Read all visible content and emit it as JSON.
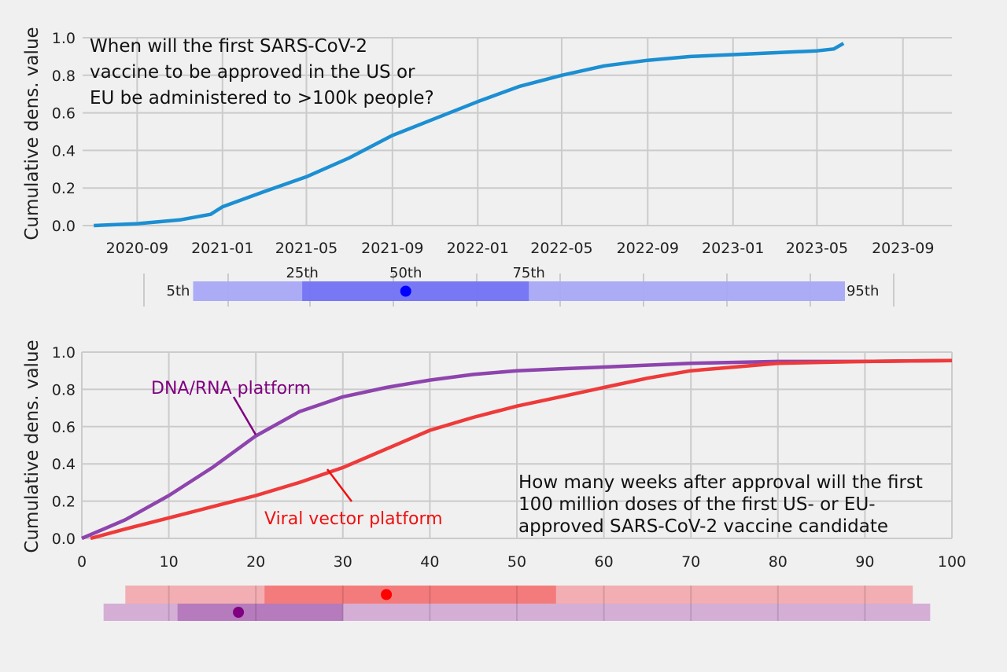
{
  "colors": {
    "background": "#f0f0f0",
    "grid": "#cbcbcb",
    "top_series": "#1c8fd2",
    "dna_rna": "#8e44ad",
    "viral_vector": "#ee3a3a",
    "top_band_light": "#a8a8f5",
    "top_band_dark": "#6e6ef5",
    "top_dot": "#0000ff",
    "red_band_light": "#f2aeb2",
    "red_band_dark": "#f47b7b",
    "red_dot": "#ff0000",
    "purple_band_light": "#d5aed5",
    "purple_band_dark": "#b57bbd",
    "purple_dot": "#800080",
    "dna_label_color": "#800080",
    "viral_label_color": "#ee1111"
  },
  "chart_data": [
    {
      "type": "line",
      "title": "When will the first SARS-CoV-2\nvaccine to be approved in the US or\nEU be administered to >100k people?",
      "ylabel": "Cumulative dens. value",
      "xlabel": "",
      "x_is_date": true,
      "xlim": [
        "2020-06-15",
        "2023-11-10"
      ],
      "ylim": [
        0,
        1.0
      ],
      "x_ticks": [
        "2020-09-01",
        "2021-01-01",
        "2021-05-01",
        "2021-09-01",
        "2022-01-01",
        "2022-05-01",
        "2022-09-01",
        "2023-01-01",
        "2023-05-01",
        "2023-09-01"
      ],
      "x_tick_labels": [
        "2020-09",
        "2021-01",
        "2021-05",
        "2021-09",
        "2022-01",
        "2022-05",
        "2022-09",
        "2023-01",
        "2023-05",
        "2023-09"
      ],
      "y_ticks": [
        0.0,
        0.2,
        0.4,
        0.6,
        0.8,
        1.0
      ],
      "y_tick_labels": [
        "0.0",
        "0.2",
        "0.4",
        "0.6",
        "0.8",
        "1.0"
      ],
      "grid": true,
      "series": [
        {
          "x": [
            "2020-07-01",
            "2020-09-01",
            "2020-11-01",
            "2020-12-15",
            "2021-01-01",
            "2021-03-01",
            "2021-05-01",
            "2021-07-01",
            "2021-09-01",
            "2021-11-01",
            "2022-01-01",
            "2022-03-01",
            "2022-05-01",
            "2022-07-01",
            "2022-09-01",
            "2022-11-01",
            "2023-01-01",
            "2023-03-01",
            "2023-05-01",
            "2023-05-25",
            "2023-06-08"
          ],
          "values": [
            0.0,
            0.01,
            0.03,
            0.06,
            0.1,
            0.18,
            0.26,
            0.36,
            0.48,
            0.57,
            0.66,
            0.74,
            0.8,
            0.85,
            0.88,
            0.9,
            0.91,
            0.92,
            0.93,
            0.94,
            0.97
          ]
        }
      ],
      "percentile_band": {
        "labels": [
          "5th",
          "25th",
          "50th",
          "75th",
          "95th"
        ],
        "dates": [
          "2020-11-20",
          "2021-04-25",
          "2021-09-20",
          "2022-03-15",
          "2023-06-10"
        ]
      }
    },
    {
      "type": "line",
      "title": "How many weeks after approval will the first\n100 million doses of the first US- or EU-\napproved SARS-CoV-2 vaccine candidate",
      "ylabel": "Cumulative dens. value",
      "xlabel": "",
      "xlim": [
        0,
        100
      ],
      "ylim": [
        0,
        1.0
      ],
      "x_ticks": [
        0,
        10,
        20,
        30,
        40,
        50,
        60,
        70,
        80,
        90,
        100
      ],
      "y_ticks": [
        0.0,
        0.2,
        0.4,
        0.6,
        0.8,
        1.0
      ],
      "y_tick_labels": [
        "0.0",
        "0.2",
        "0.4",
        "0.6",
        "0.8",
        "1.0"
      ],
      "grid": true,
      "series": [
        {
          "name": "DNA/RNA platform",
          "x": [
            0,
            5,
            10,
            15,
            20,
            25,
            30,
            35,
            40,
            45,
            50,
            55,
            60,
            70,
            80,
            90,
            100
          ],
          "values": [
            0.0,
            0.1,
            0.23,
            0.38,
            0.55,
            0.68,
            0.76,
            0.81,
            0.85,
            0.88,
            0.9,
            0.91,
            0.92,
            0.94,
            0.95,
            0.95,
            0.955
          ]
        },
        {
          "name": "Viral vector platform",
          "x": [
            1,
            5,
            10,
            15,
            20,
            25,
            30,
            35,
            40,
            45,
            50,
            55,
            60,
            65,
            70,
            75,
            80,
            90,
            100
          ],
          "values": [
            0.0,
            0.05,
            0.11,
            0.17,
            0.23,
            0.3,
            0.38,
            0.48,
            0.58,
            0.65,
            0.71,
            0.76,
            0.81,
            0.86,
            0.9,
            0.92,
            0.94,
            0.95,
            0.955
          ]
        }
      ],
      "percentile_bands": [
        {
          "series": "Viral vector platform",
          "p5": 5,
          "p25": 21,
          "p50": 35,
          "p75": 54.5,
          "p95": 95.5
        },
        {
          "series": "DNA/RNA platform",
          "p5": 2.5,
          "p25": 11,
          "p50": 18,
          "p75": 30,
          "p95": 97.5
        }
      ]
    }
  ]
}
